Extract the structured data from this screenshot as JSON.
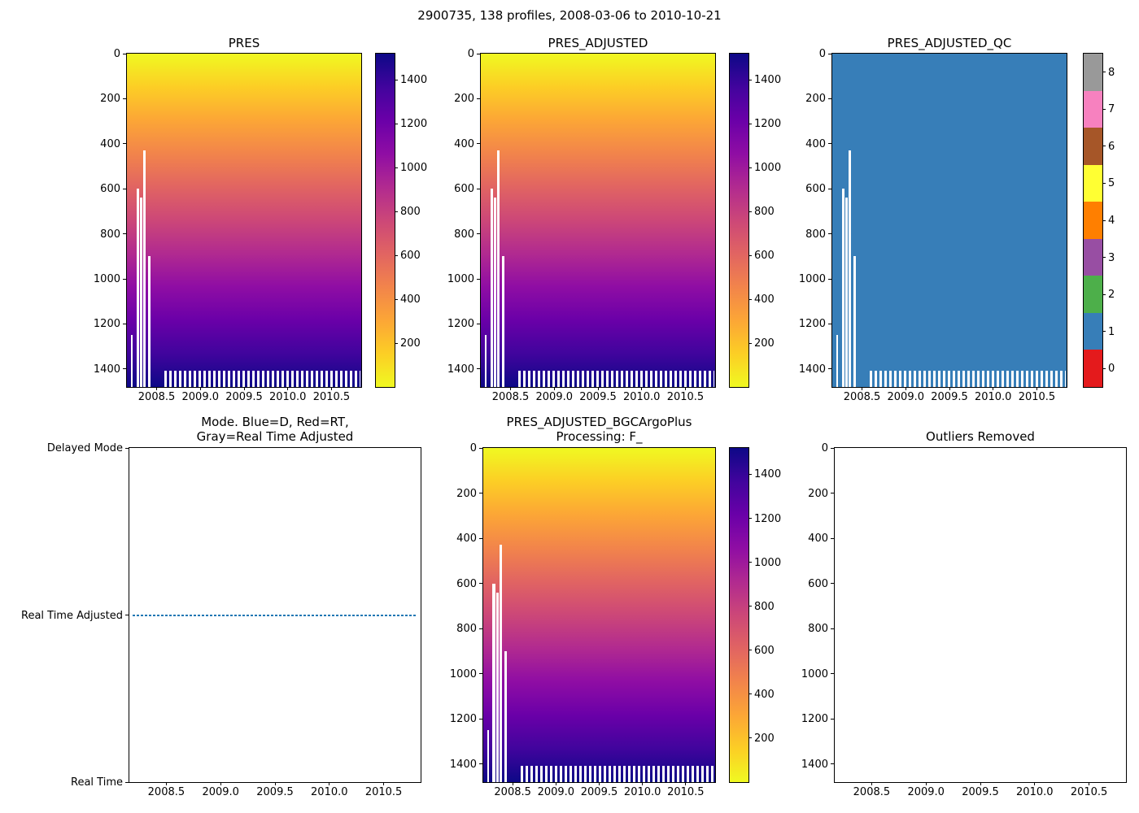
{
  "figure": {
    "suptitle": "2900735, 138 profiles, 2008-03-06 to 2010-10-21",
    "platform_id": "2900735",
    "n_profiles": 138,
    "date_start": "2008-03-06",
    "date_end": "2010-10-21"
  },
  "palette": {
    "heatmap_gradient_top_to_bottom": [
      "#f0f921",
      "#fcce25",
      "#fca636",
      "#f2844b",
      "#e16462",
      "#cc4778",
      "#b12a90",
      "#8f0da4",
      "#6a00a8",
      "#41049d",
      "#0d0887"
    ],
    "qc_category_colors_0_to_8": [
      "#e41a1c",
      "#377eb8",
      "#4daf4a",
      "#984ea3",
      "#ff7f00",
      "#ffff33",
      "#a65628",
      "#f781bf",
      "#999999"
    ],
    "qc_fill": "#377eb8",
    "mode_line_color": "#1f77b4",
    "axis_color": "#000000",
    "background": "#ffffff"
  },
  "chart_data": [
    {
      "id": "pres",
      "type": "heatmap",
      "title": "PRES",
      "x": {
        "range": [
          2008.16,
          2010.84
        ],
        "tick_values": [
          2008.5,
          2009.0,
          2009.5,
          2010.0,
          2010.5
        ],
        "ticks": [
          "2008.5",
          "2009.0",
          "2009.5",
          "2010.0",
          "2010.5"
        ]
      },
      "y": {
        "range": [
          0,
          1480
        ],
        "tick_values": [
          0,
          200,
          400,
          600,
          800,
          1000,
          1200,
          1400
        ],
        "ticks": [
          "0",
          "200",
          "400",
          "600",
          "800",
          "1000",
          "1200",
          "1400"
        ],
        "orientation": "depth-downward"
      },
      "value_range_dbar": [
        0,
        1520
      ],
      "missing_columns": [
        {
          "x_frac": 0.018,
          "w_frac": 0.008,
          "top_dbar": 1250
        },
        {
          "x_frac": 0.04,
          "w_frac": 0.012,
          "top_dbar": 600
        },
        {
          "x_frac": 0.056,
          "w_frac": 0.009,
          "top_dbar": 640
        },
        {
          "x_frac": 0.07,
          "w_frac": 0.01,
          "top_dbar": 430
        },
        {
          "x_frac": 0.092,
          "w_frac": 0.009,
          "top_dbar": 900
        }
      ],
      "bottom_comb": {
        "start_frac": 0.16,
        "end_frac": 0.995,
        "top_dbar": 1408
      },
      "colorbar": {
        "kind": "gradient",
        "range": [
          0,
          1520
        ],
        "tick_values": [
          200,
          400,
          600,
          800,
          1000,
          1200,
          1400
        ],
        "ticks": [
          "200",
          "400",
          "600",
          "800",
          "1000",
          "1200",
          "1400"
        ]
      }
    },
    {
      "id": "pres-adjusted",
      "type": "heatmap",
      "title": "PRES_ADJUSTED",
      "x": {
        "range": [
          2008.16,
          2010.84
        ],
        "tick_values": [
          2008.5,
          2009.0,
          2009.5,
          2010.0,
          2010.5
        ],
        "ticks": [
          "2008.5",
          "2009.0",
          "2009.5",
          "2010.0",
          "2010.5"
        ]
      },
      "y": {
        "range": [
          0,
          1480
        ],
        "tick_values": [
          0,
          200,
          400,
          600,
          800,
          1000,
          1200,
          1400
        ],
        "ticks": [
          "0",
          "200",
          "400",
          "600",
          "800",
          "1000",
          "1200",
          "1400"
        ],
        "orientation": "depth-downward"
      },
      "value_range_dbar": [
        0,
        1520
      ],
      "missing_columns": [
        {
          "x_frac": 0.018,
          "w_frac": 0.008,
          "top_dbar": 1250
        },
        {
          "x_frac": 0.04,
          "w_frac": 0.012,
          "top_dbar": 600
        },
        {
          "x_frac": 0.056,
          "w_frac": 0.009,
          "top_dbar": 640
        },
        {
          "x_frac": 0.07,
          "w_frac": 0.01,
          "top_dbar": 430
        },
        {
          "x_frac": 0.092,
          "w_frac": 0.009,
          "top_dbar": 900
        }
      ],
      "bottom_comb": {
        "start_frac": 0.16,
        "end_frac": 0.995,
        "top_dbar": 1408
      },
      "colorbar": {
        "kind": "gradient",
        "range": [
          0,
          1520
        ],
        "tick_values": [
          200,
          400,
          600,
          800,
          1000,
          1200,
          1400
        ],
        "ticks": [
          "200",
          "400",
          "600",
          "800",
          "1000",
          "1200",
          "1400"
        ]
      }
    },
    {
      "id": "pres-adjusted-qc",
      "type": "heatmap-qc",
      "title": "PRES_ADJUSTED_QC",
      "constant_qc_value": 1,
      "x": {
        "range": [
          2008.16,
          2010.84
        ],
        "tick_values": [
          2008.5,
          2009.0,
          2009.5,
          2010.0,
          2010.5
        ],
        "ticks": [
          "2008.5",
          "2009.0",
          "2009.5",
          "2010.0",
          "2010.5"
        ]
      },
      "y": {
        "range": [
          0,
          1480
        ],
        "tick_values": [
          0,
          200,
          400,
          600,
          800,
          1000,
          1200,
          1400
        ],
        "ticks": [
          "0",
          "200",
          "400",
          "600",
          "800",
          "1000",
          "1200",
          "1400"
        ],
        "orientation": "depth-downward"
      },
      "missing_columns": [
        {
          "x_frac": 0.018,
          "w_frac": 0.008,
          "top_dbar": 1250
        },
        {
          "x_frac": 0.04,
          "w_frac": 0.012,
          "top_dbar": 600
        },
        {
          "x_frac": 0.056,
          "w_frac": 0.009,
          "top_dbar": 640
        },
        {
          "x_frac": 0.07,
          "w_frac": 0.01,
          "top_dbar": 430
        },
        {
          "x_frac": 0.092,
          "w_frac": 0.009,
          "top_dbar": 900
        }
      ],
      "bottom_comb": {
        "start_frac": 0.16,
        "end_frac": 0.995,
        "top_dbar": 1408
      },
      "colorbar": {
        "kind": "discrete",
        "range": [
          -0.5,
          8.5
        ],
        "tick_values": [
          0,
          1,
          2,
          3,
          4,
          5,
          6,
          7,
          8
        ],
        "ticks": [
          "0",
          "1",
          "2",
          "3",
          "4",
          "5",
          "6",
          "7",
          "8"
        ]
      }
    },
    {
      "id": "mode",
      "type": "category-line",
      "title": "Mode. Blue=D, Red=RT,\nGray=Real Time Adjusted",
      "x": {
        "range": [
          2008.16,
          2010.84
        ],
        "tick_values": [
          2008.5,
          2009.0,
          2009.5,
          2010.0,
          2010.5
        ],
        "ticks": [
          "2008.5",
          "2009.0",
          "2009.5",
          "2010.0",
          "2010.5"
        ]
      },
      "y_categories": [
        {
          "label": "Delayed Mode",
          "frac": 0.0
        },
        {
          "label": "Real Time Adjusted",
          "frac": 0.5
        },
        {
          "label": "Real Time",
          "frac": 1.0
        }
      ],
      "series": {
        "constant_value": "Real Time Adjusted",
        "marker_color": "#1f77b4",
        "style": "dotted",
        "y_frac": 0.5,
        "x_start_frac": 0.012,
        "x_end_frac": 0.988
      }
    },
    {
      "id": "pres-adjusted-bgc",
      "type": "heatmap",
      "title": "PRES_ADJUSTED_BGCArgoPlus\nProcessing: F_",
      "x": {
        "range": [
          2008.16,
          2010.84
        ],
        "tick_values": [
          2008.5,
          2009.0,
          2009.5,
          2010.0,
          2010.5
        ],
        "ticks": [
          "2008.5",
          "2009.0",
          "2009.5",
          "2010.0",
          "2010.5"
        ]
      },
      "y": {
        "range": [
          0,
          1480
        ],
        "tick_values": [
          0,
          200,
          400,
          600,
          800,
          1000,
          1200,
          1400
        ],
        "ticks": [
          "0",
          "200",
          "400",
          "600",
          "800",
          "1000",
          "1200",
          "1400"
        ],
        "orientation": "depth-downward"
      },
      "value_range_dbar": [
        0,
        1520
      ],
      "missing_columns": [
        {
          "x_frac": 0.018,
          "w_frac": 0.008,
          "top_dbar": 1250
        },
        {
          "x_frac": 0.04,
          "w_frac": 0.012,
          "top_dbar": 600
        },
        {
          "x_frac": 0.056,
          "w_frac": 0.009,
          "top_dbar": 640
        },
        {
          "x_frac": 0.07,
          "w_frac": 0.01,
          "top_dbar": 430
        },
        {
          "x_frac": 0.092,
          "w_frac": 0.009,
          "top_dbar": 900
        }
      ],
      "bottom_comb": {
        "start_frac": 0.16,
        "end_frac": 0.995,
        "top_dbar": 1408
      },
      "colorbar": {
        "kind": "gradient",
        "range": [
          0,
          1520
        ],
        "tick_values": [
          200,
          400,
          600,
          800,
          1000,
          1200,
          1400
        ],
        "ticks": [
          "200",
          "400",
          "600",
          "800",
          "1000",
          "1200",
          "1400"
        ]
      }
    },
    {
      "id": "outliers-removed",
      "type": "empty",
      "title": "Outliers Removed",
      "x": {
        "range": [
          2008.16,
          2010.84
        ],
        "tick_values": [
          2008.5,
          2009.0,
          2009.5,
          2010.0,
          2010.5
        ],
        "ticks": [
          "2008.5",
          "2009.0",
          "2009.5",
          "2010.0",
          "2010.5"
        ]
      },
      "y": {
        "range": [
          0,
          1480
        ],
        "tick_values": [
          0,
          200,
          400,
          600,
          800,
          1000,
          1200,
          1400
        ],
        "ticks": [
          "0",
          "200",
          "400",
          "600",
          "800",
          "1000",
          "1200",
          "1400"
        ],
        "orientation": "depth-downward"
      }
    }
  ]
}
